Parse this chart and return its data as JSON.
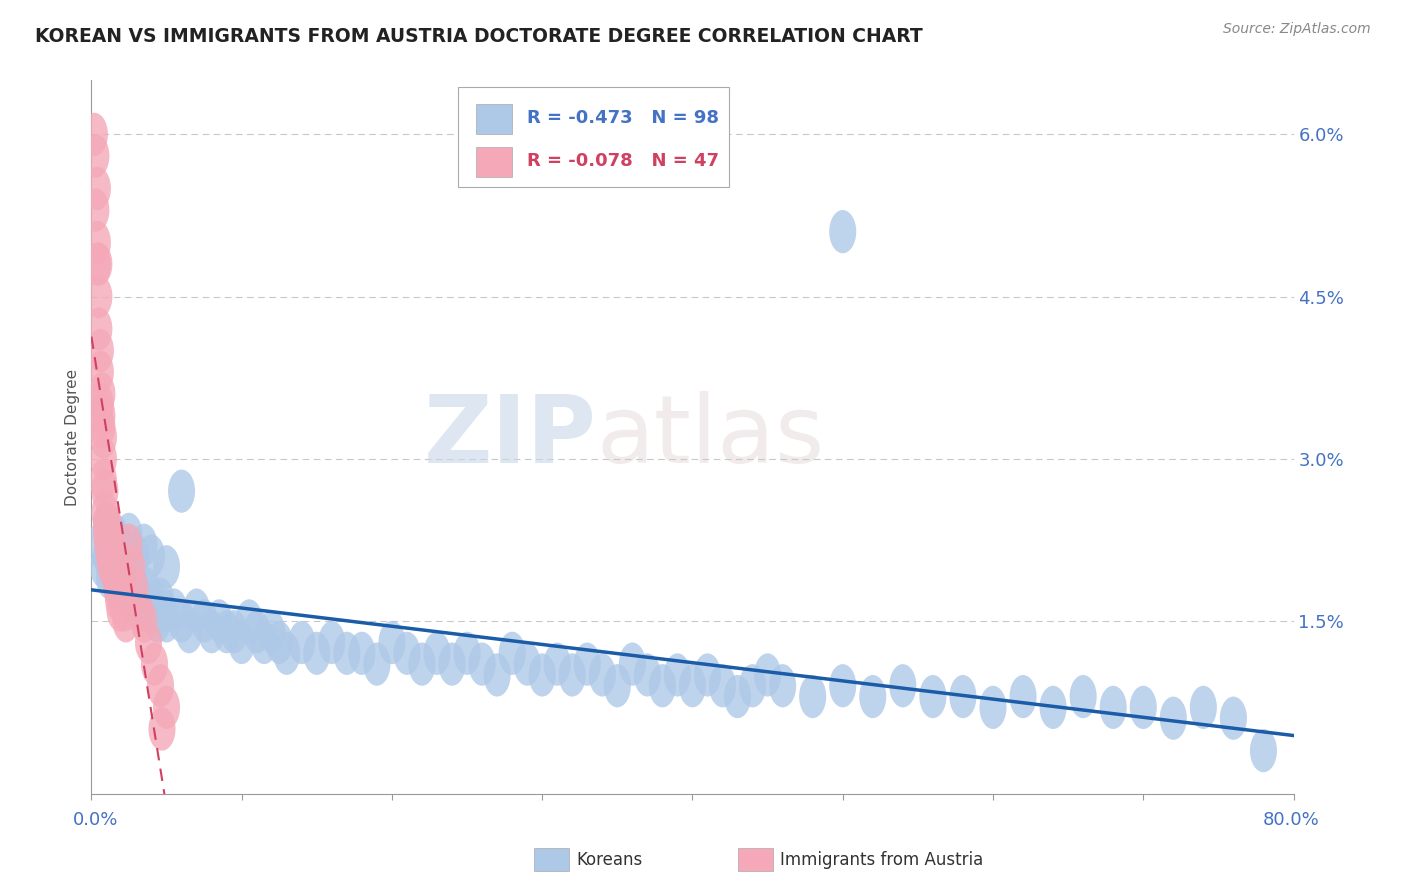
{
  "title": "KOREAN VS IMMIGRANTS FROM AUSTRIA DOCTORATE DEGREE CORRELATION CHART",
  "source_text": "Source: ZipAtlas.com",
  "ylabel": "Doctorate Degree",
  "xlim": [
    0.0,
    0.8
  ],
  "ylim": [
    -0.001,
    0.065
  ],
  "ytick_vals": [
    0.015,
    0.03,
    0.045,
    0.06
  ],
  "ytick_labels": [
    "1.5%",
    "3.0%",
    "4.5%",
    "6.0%"
  ],
  "series1_color": "#aec8e8",
  "series2_color": "#f4a8b8",
  "trend1_color": "#1a5ca8",
  "trend2_color": "#d04060",
  "R1": -0.473,
  "N1": 98,
  "R2": -0.078,
  "N2": 47,
  "legend_label1": "Koreans",
  "legend_label2": "Immigrants from Austria",
  "watermark_zip": "ZIP",
  "watermark_atlas": "atlas",
  "background_color": "#ffffff",
  "grid_color": "#c8c8c8",
  "title_color": "#222222",
  "axis_label_color": "#555555",
  "tick_label_color": "#4472c4",
  "source_color": "#888888",
  "koreans_x": [
    0.005,
    0.008,
    0.01,
    0.012,
    0.014,
    0.016,
    0.018,
    0.02,
    0.022,
    0.024,
    0.026,
    0.028,
    0.03,
    0.032,
    0.034,
    0.036,
    0.038,
    0.04,
    0.042,
    0.044,
    0.046,
    0.048,
    0.05,
    0.055,
    0.06,
    0.065,
    0.07,
    0.075,
    0.08,
    0.085,
    0.09,
    0.095,
    0.1,
    0.105,
    0.11,
    0.115,
    0.12,
    0.125,
    0.13,
    0.14,
    0.15,
    0.16,
    0.17,
    0.18,
    0.19,
    0.2,
    0.21,
    0.22,
    0.23,
    0.24,
    0.25,
    0.26,
    0.27,
    0.28,
    0.29,
    0.3,
    0.31,
    0.32,
    0.33,
    0.34,
    0.35,
    0.36,
    0.37,
    0.38,
    0.39,
    0.4,
    0.41,
    0.42,
    0.43,
    0.44,
    0.45,
    0.46,
    0.48,
    0.5,
    0.52,
    0.54,
    0.56,
    0.58,
    0.6,
    0.62,
    0.64,
    0.66,
    0.68,
    0.7,
    0.72,
    0.74,
    0.76,
    0.78,
    0.01,
    0.015,
    0.02,
    0.025,
    0.03,
    0.035,
    0.04,
    0.05,
    0.06,
    0.5
  ],
  "koreans_y": [
    0.022,
    0.02,
    0.021,
    0.019,
    0.022,
    0.02,
    0.018,
    0.019,
    0.02,
    0.018,
    0.017,
    0.019,
    0.018,
    0.017,
    0.016,
    0.018,
    0.016,
    0.017,
    0.016,
    0.015,
    0.017,
    0.016,
    0.015,
    0.016,
    0.015,
    0.014,
    0.016,
    0.015,
    0.014,
    0.015,
    0.014,
    0.014,
    0.013,
    0.015,
    0.014,
    0.013,
    0.014,
    0.013,
    0.012,
    0.013,
    0.012,
    0.013,
    0.012,
    0.012,
    0.011,
    0.013,
    0.012,
    0.011,
    0.012,
    0.011,
    0.012,
    0.011,
    0.01,
    0.012,
    0.011,
    0.01,
    0.011,
    0.01,
    0.011,
    0.01,
    0.009,
    0.011,
    0.01,
    0.009,
    0.01,
    0.009,
    0.01,
    0.009,
    0.008,
    0.009,
    0.01,
    0.009,
    0.008,
    0.009,
    0.008,
    0.009,
    0.008,
    0.008,
    0.007,
    0.008,
    0.007,
    0.008,
    0.007,
    0.007,
    0.006,
    0.007,
    0.006,
    0.003,
    0.024,
    0.023,
    0.022,
    0.023,
    0.021,
    0.022,
    0.021,
    0.02,
    0.027,
    0.051
  ],
  "austria_x": [
    0.003,
    0.004,
    0.004,
    0.005,
    0.005,
    0.005,
    0.006,
    0.006,
    0.007,
    0.007,
    0.008,
    0.008,
    0.008,
    0.009,
    0.009,
    0.01,
    0.01,
    0.011,
    0.011,
    0.012,
    0.013,
    0.013,
    0.014,
    0.015,
    0.016,
    0.017,
    0.018,
    0.019,
    0.02,
    0.021,
    0.022,
    0.023,
    0.025,
    0.027,
    0.029,
    0.032,
    0.035,
    0.038,
    0.042,
    0.046,
    0.05,
    0.002,
    0.003,
    0.004,
    0.006,
    0.007,
    0.047
  ],
  "austria_y": [
    0.058,
    0.055,
    0.05,
    0.048,
    0.045,
    0.042,
    0.04,
    0.038,
    0.036,
    0.034,
    0.032,
    0.03,
    0.028,
    0.027,
    0.025,
    0.024,
    0.023,
    0.022,
    0.024,
    0.021,
    0.02,
    0.022,
    0.021,
    0.02,
    0.019,
    0.018,
    0.017,
    0.016,
    0.018,
    0.017,
    0.016,
    0.015,
    0.022,
    0.02,
    0.018,
    0.016,
    0.015,
    0.013,
    0.011,
    0.009,
    0.007,
    0.06,
    0.053,
    0.048,
    0.035,
    0.033,
    0.005
  ]
}
